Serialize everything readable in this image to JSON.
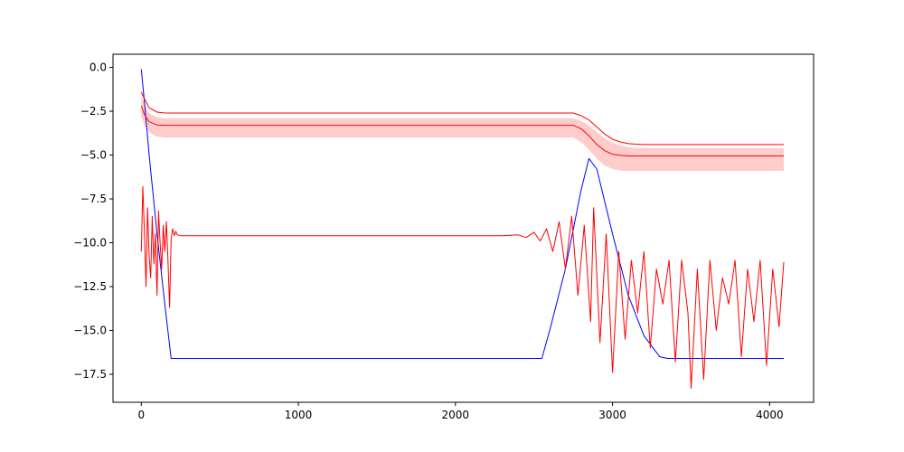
{
  "chart_data": {
    "type": "line",
    "title": "",
    "xlabel": "",
    "ylabel": "",
    "xlim": [
      -180,
      4280
    ],
    "ylim": [
      -19.1,
      0.75
    ],
    "grid": false,
    "legend": "none",
    "x_ticks": [
      {
        "value": 0,
        "label": "0"
      },
      {
        "value": 1000,
        "label": "1000"
      },
      {
        "value": 2000,
        "label": "2000"
      },
      {
        "value": 3000,
        "label": "3000"
      },
      {
        "value": 4000,
        "label": "4000"
      }
    ],
    "y_ticks": [
      {
        "value": 0,
        "label": "0.0"
      },
      {
        "value": -2.5,
        "label": "−2.5"
      },
      {
        "value": -5,
        "label": "−5.0"
      },
      {
        "value": -7.5,
        "label": "−7.5"
      },
      {
        "value": -10,
        "label": "−10.0"
      },
      {
        "value": -12.5,
        "label": "−12.5"
      },
      {
        "value": -15,
        "label": "−15.0"
      },
      {
        "value": -17.5,
        "label": "−17.5"
      }
    ],
    "colors": {
      "blue": "#0000ff",
      "red": "#ff0000",
      "band": "#ffcccc"
    },
    "series": [
      {
        "color": "#0000ff",
        "x": [
          0,
          20,
          50,
          100,
          150,
          190,
          2550,
          2600,
          2700,
          2800,
          2850,
          2900,
          3000,
          3100,
          3200,
          3300,
          3350,
          4090
        ],
        "y": [
          -0.1,
          -2.0,
          -5.0,
          -9.5,
          -13.5,
          -16.6,
          -16.6,
          -15.0,
          -11.5,
          -7.0,
          -5.2,
          -5.8,
          -9.5,
          -13.0,
          -15.3,
          -16.5,
          -16.6,
          -16.6
        ]
      },
      {
        "color": "#ff0000",
        "x": [
          0,
          20,
          50,
          100,
          150,
          2750,
          2800,
          2850,
          2900,
          2950,
          3000,
          3050,
          3100,
          3150,
          3200,
          4090
        ],
        "y": [
          -1.4,
          -1.8,
          -2.3,
          -2.55,
          -2.6,
          -2.6,
          -2.75,
          -3.0,
          -3.4,
          -3.8,
          -4.1,
          -4.25,
          -4.35,
          -4.38,
          -4.4,
          -4.4
        ]
      },
      {
        "color": "#ff0000",
        "x": [
          0,
          20,
          50,
          100,
          150,
          2750,
          2800,
          2850,
          2900,
          2950,
          3000,
          3050,
          3100,
          3150,
          3200,
          4090
        ],
        "y": [
          -2.2,
          -2.7,
          -3.1,
          -3.28,
          -3.3,
          -3.3,
          -3.5,
          -3.9,
          -4.4,
          -4.75,
          -4.95,
          -5.02,
          -5.05,
          -5.05,
          -5.05,
          -5.05
        ]
      },
      {
        "color": "#ff0000",
        "x": [
          0,
          10,
          20,
          30,
          40,
          50,
          60,
          70,
          80,
          90,
          100,
          110,
          120,
          130,
          140,
          150,
          160,
          170,
          180,
          190,
          200,
          210,
          220,
          230,
          250,
          300,
          1000,
          2000,
          2300,
          2400,
          2450,
          2500,
          2540,
          2580,
          2620,
          2660,
          2700,
          2740,
          2780,
          2820,
          2860,
          2880,
          2920,
          2960,
          3000,
          3040,
          3080,
          3120,
          3160,
          3200,
          3240,
          3280,
          3320,
          3360,
          3400,
          3440,
          3480,
          3500,
          3540,
          3580,
          3620,
          3660,
          3700,
          3740,
          3780,
          3820,
          3860,
          3900,
          3940,
          3980,
          4020,
          4060,
          4090
        ],
        "y": [
          -10.5,
          -6.8,
          -9.5,
          -12.5,
          -8.0,
          -10.8,
          -12.0,
          -8.5,
          -11.2,
          -9.5,
          -13.0,
          -8.2,
          -10.0,
          -11.5,
          -9.0,
          -10.5,
          -8.8,
          -11.0,
          -13.7,
          -9.8,
          -9.2,
          -9.6,
          -9.35,
          -9.55,
          -9.6,
          -9.6,
          -9.6,
          -9.6,
          -9.6,
          -9.55,
          -9.7,
          -9.4,
          -9.9,
          -9.2,
          -10.5,
          -8.8,
          -11.5,
          -8.5,
          -13.0,
          -9.0,
          -14.5,
          -8.0,
          -15.7,
          -9.5,
          -17.4,
          -10.5,
          -15.5,
          -11.0,
          -14.0,
          -10.5,
          -16.0,
          -11.5,
          -13.5,
          -11.0,
          -16.8,
          -11.0,
          -14.0,
          -18.3,
          -11.5,
          -17.8,
          -11.0,
          -15.0,
          -12.0,
          -13.5,
          -11.0,
          -16.5,
          -11.5,
          -14.5,
          -11.0,
          -17.0,
          -11.5,
          -14.8,
          -11.1
        ]
      }
    ],
    "band": {
      "color": "#ffcccc",
      "x": [
        0,
        20,
        50,
        100,
        150,
        2750,
        2800,
        2850,
        2900,
        2950,
        3000,
        3050,
        3100,
        3150,
        3200,
        4090
      ],
      "upper": [
        -1.6,
        -2.1,
        -2.6,
        -2.85,
        -2.9,
        -2.9,
        -3.05,
        -3.3,
        -3.7,
        -4.05,
        -4.3,
        -4.45,
        -4.55,
        -4.6,
        -4.6,
        -4.6
      ],
      "lower": [
        -2.8,
        -3.3,
        -3.7,
        -3.95,
        -4.0,
        -4.0,
        -4.25,
        -4.7,
        -5.2,
        -5.6,
        -5.8,
        -5.88,
        -5.9,
        -5.9,
        -5.9,
        -5.9
      ]
    }
  }
}
